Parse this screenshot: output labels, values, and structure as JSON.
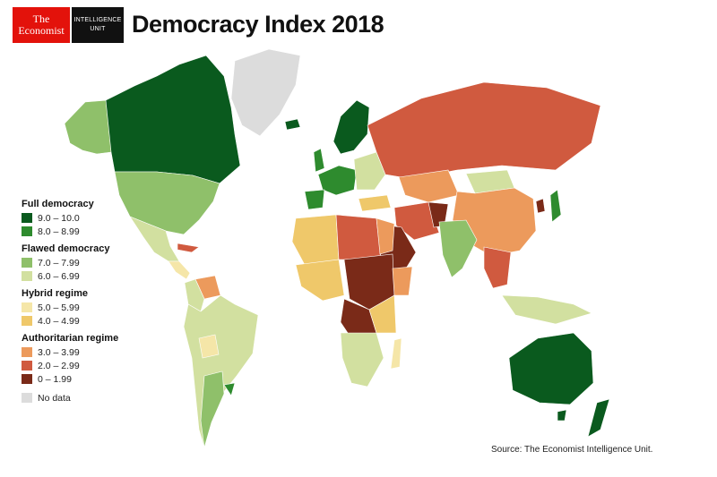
{
  "header": {
    "logo_line1": "The",
    "logo_line2": "Economist",
    "unit_line1": "INTELLIGENCE",
    "unit_line2": "UNIT",
    "title": "Democracy Index 2018"
  },
  "legend": {
    "groups": [
      {
        "heading": "Full democracy",
        "items": [
          {
            "label": "9.0 – 10.0",
            "color": "#0a5a1e"
          },
          {
            "label": "8.0 – 8.99",
            "color": "#2e8b2e"
          }
        ]
      },
      {
        "heading": "Flawed democracy",
        "items": [
          {
            "label": "7.0 – 7.99",
            "color": "#8fc06a"
          },
          {
            "label": "6.0 – 6.99",
            "color": "#d2e0a0"
          }
        ]
      },
      {
        "heading": "Hybrid regime",
        "items": [
          {
            "label": "5.0 – 5.99",
            "color": "#f5e6a8"
          },
          {
            "label": "4.0 – 4.99",
            "color": "#efc86a"
          }
        ]
      },
      {
        "heading": "Authoritarian regime",
        "items": [
          {
            "label": "3.0 – 3.99",
            "color": "#ec9a5c"
          },
          {
            "label": "2.0 – 2.99",
            "color": "#d05a3f"
          },
          {
            "label": "0 – 1.99",
            "color": "#7a2a18"
          }
        ]
      },
      {
        "heading": "",
        "items": [
          {
            "label": "No data",
            "color": "#dcdcdc"
          }
        ]
      }
    ]
  },
  "source": "Source: The Economist Intelligence Unit.",
  "colors": {
    "full_high": "#0a5a1e",
    "full_low": "#2e8b2e",
    "flawed_high": "#8fc06a",
    "flawed_low": "#d2e0a0",
    "hybrid_high": "#f5e6a8",
    "hybrid_low": "#efc86a",
    "auth_high": "#ec9a5c",
    "auth_mid": "#d05a3f",
    "auth_low": "#7a2a18",
    "no_data": "#dcdcdc"
  }
}
